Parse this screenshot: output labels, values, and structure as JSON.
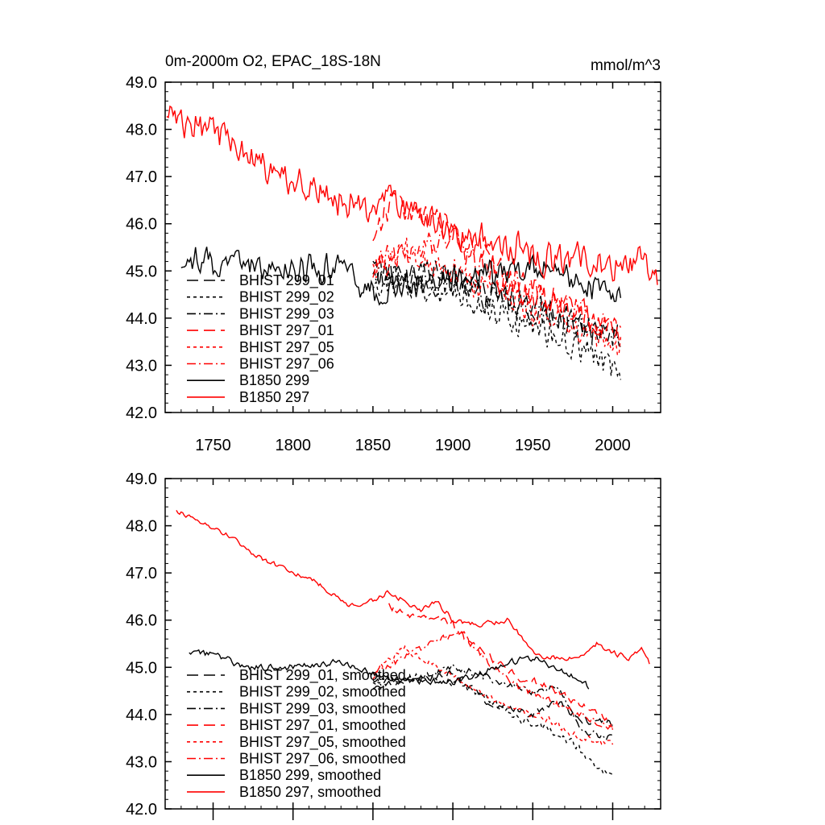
{
  "chart_data": [
    {
      "type": "line",
      "title": "0m-2000m O2, EPAC_18S-18N",
      "units_label": "mmol/m^3",
      "xlim": [
        1720,
        2030
      ],
      "ylim": [
        42.0,
        49.0
      ],
      "x_ticks": [
        1750,
        1800,
        1850,
        1900,
        1950,
        2000
      ],
      "x_tick_labels": [
        "1750",
        "1800",
        "1850",
        "1900",
        "1950",
        "2000"
      ],
      "y_ticks": [
        42,
        43,
        44,
        45,
        46,
        47,
        48,
        49
      ],
      "y_tick_labels": [
        "42.0",
        "43.0",
        "44.0",
        "45.0",
        "46.0",
        "47.0",
        "48.0",
        "49.0"
      ],
      "legend_position": "lower-left",
      "series": [
        {
          "name": "BHIST 299_01",
          "color": "#000000",
          "dash": "long-dash",
          "x_range": [
            1850,
            2005
          ],
          "anchors": [
            [
              1850,
              45.0
            ],
            [
              1880,
              44.9
            ],
            [
              1900,
              44.9
            ],
            [
              1920,
              44.6
            ],
            [
              1950,
              44.3
            ],
            [
              1975,
              43.9
            ],
            [
              2005,
              43.6
            ]
          ],
          "noise": 0.45,
          "seed": 11
        },
        {
          "name": "BHIST 299_02",
          "color": "#000000",
          "dash": "short-dash",
          "x_range": [
            1850,
            2005
          ],
          "anchors": [
            [
              1850,
              44.8
            ],
            [
              1880,
              44.7
            ],
            [
              1910,
              44.4
            ],
            [
              1940,
              44.0
            ],
            [
              1970,
              43.5
            ],
            [
              2005,
              42.9
            ]
          ],
          "noise": 0.5,
          "seed": 12
        },
        {
          "name": "BHIST 299_03",
          "color": "#000000",
          "dash": "dash-dot",
          "x_range": [
            1850,
            2005
          ],
          "anchors": [
            [
              1850,
              45.0
            ],
            [
              1880,
              44.8
            ],
            [
              1910,
              44.6
            ],
            [
              1940,
              44.2
            ],
            [
              1970,
              43.9
            ],
            [
              2005,
              43.6
            ]
          ],
          "noise": 0.45,
          "seed": 13
        },
        {
          "name": "BHIST 297_01",
          "color": "#ff0000",
          "dash": "long-dash",
          "x_range": [
            1850,
            2005
          ],
          "anchors": [
            [
              1850,
              45.6
            ],
            [
              1860,
              46.4
            ],
            [
              1880,
              46.2
            ],
            [
              1900,
              45.8
            ],
            [
              1930,
              45.0
            ],
            [
              1960,
              44.4
            ],
            [
              1985,
              44.1
            ],
            [
              2005,
              43.7
            ]
          ],
          "noise": 0.45,
          "seed": 14
        },
        {
          "name": "BHIST 297_05",
          "color": "#ff0000",
          "dash": "short-dash",
          "x_range": [
            1850,
            2005
          ],
          "anchors": [
            [
              1850,
              45.0
            ],
            [
              1870,
              45.4
            ],
            [
              1890,
              45.2
            ],
            [
              1910,
              44.8
            ],
            [
              1940,
              44.3
            ],
            [
              1970,
              43.9
            ],
            [
              2005,
              43.4
            ]
          ],
          "noise": 0.45,
          "seed": 15
        },
        {
          "name": "BHIST 297_06",
          "color": "#ff0000",
          "dash": "dash-dot",
          "x_range": [
            1850,
            2005
          ],
          "anchors": [
            [
              1850,
              45.1
            ],
            [
              1880,
              45.5
            ],
            [
              1900,
              45.6
            ],
            [
              1925,
              45.0
            ],
            [
              1950,
              44.5
            ],
            [
              1980,
              44.1
            ],
            [
              2005,
              43.8
            ]
          ],
          "noise": 0.45,
          "seed": 16
        },
        {
          "name": "B1850 299",
          "color": "#000000",
          "dash": "solid",
          "x_range": [
            1730,
            2005
          ],
          "anchors": [
            [
              1730,
              45.2
            ],
            [
              1760,
              45.2
            ],
            [
              1800,
              45.0
            ],
            [
              1830,
              45.1
            ],
            [
              1845,
              44.6
            ],
            [
              1880,
              44.7
            ],
            [
              1920,
              44.9
            ],
            [
              1950,
              45.1
            ],
            [
              1980,
              44.8
            ],
            [
              2005,
              44.3
            ]
          ],
          "noise": 0.45,
          "seed": 17
        },
        {
          "name": "B1850 297",
          "color": "#ff0000",
          "dash": "solid",
          "x_range": [
            1721,
            2028
          ],
          "anchors": [
            [
              1721,
              48.3
            ],
            [
              1730,
              48.2
            ],
            [
              1760,
              47.8
            ],
            [
              1790,
              47.1
            ],
            [
              1820,
              46.6
            ],
            [
              1845,
              46.3
            ],
            [
              1860,
              46.5
            ],
            [
              1880,
              46.2
            ],
            [
              1900,
              45.8
            ],
            [
              1920,
              45.7
            ],
            [
              1940,
              45.5
            ],
            [
              1960,
              45.2
            ],
            [
              1980,
              45.3
            ],
            [
              2000,
              45.0
            ],
            [
              2020,
              45.2
            ],
            [
              2028,
              44.7
            ]
          ],
          "noise": 0.5,
          "seed": 18
        }
      ]
    },
    {
      "type": "line",
      "title": "",
      "xlim": [
        1720,
        2030
      ],
      "ylim": [
        42.0,
        49.0
      ],
      "y_ticks": [
        42,
        43,
        44,
        45,
        46,
        47,
        48,
        49
      ],
      "y_tick_labels": [
        "42.0",
        "43.0",
        "44.0",
        "45.0",
        "46.0",
        "47.0",
        "48.0",
        "49.0"
      ],
      "legend_position": "lower-left",
      "series": [
        {
          "name": "BHIST 299_01, smoothed",
          "color": "#000000",
          "dash": "long-dash",
          "x_range": [
            1850,
            2000
          ],
          "anchors": [
            [
              1850,
              44.6
            ],
            [
              1870,
              44.7
            ],
            [
              1890,
              44.8
            ],
            [
              1900,
              44.9
            ],
            [
              1920,
              44.3
            ],
            [
              1940,
              44.1
            ],
            [
              1950,
              44.0
            ],
            [
              1965,
              44.3
            ],
            [
              1980,
              43.9
            ],
            [
              2000,
              43.8
            ]
          ],
          "noise": 0.12,
          "seed": 21
        },
        {
          "name": "BHIST 299_02, smoothed",
          "color": "#000000",
          "dash": "short-dash",
          "x_range": [
            1850,
            2000
          ],
          "anchors": [
            [
              1850,
              44.7
            ],
            [
              1880,
              44.8
            ],
            [
              1900,
              44.7
            ],
            [
              1920,
              44.4
            ],
            [
              1940,
              43.9
            ],
            [
              1960,
              43.7
            ],
            [
              1975,
              43.4
            ],
            [
              1990,
              42.9
            ],
            [
              2000,
              42.7
            ]
          ],
          "noise": 0.12,
          "seed": 22
        },
        {
          "name": "BHIST 299_03, smoothed",
          "color": "#000000",
          "dash": "dash-dot",
          "x_range": [
            1850,
            2000
          ],
          "anchors": [
            [
              1850,
              44.7
            ],
            [
              1880,
              44.8
            ],
            [
              1900,
              45.0
            ],
            [
              1930,
              44.7
            ],
            [
              1950,
              44.5
            ],
            [
              1965,
              44.6
            ],
            [
              1980,
              43.7
            ],
            [
              2000,
              43.5
            ]
          ],
          "noise": 0.12,
          "seed": 23
        },
        {
          "name": "BHIST 297_01, smoothed",
          "color": "#ff0000",
          "dash": "long-dash",
          "x_range": [
            1860,
            2000
          ],
          "anchors": [
            [
              1860,
              46.3
            ],
            [
              1870,
              46.1
            ],
            [
              1880,
              46.1
            ],
            [
              1890,
              46.0
            ],
            [
              1900,
              45.9
            ],
            [
              1920,
              45.3
            ],
            [
              1940,
              44.8
            ],
            [
              1960,
              44.6
            ],
            [
              1980,
              44.2
            ],
            [
              2000,
              43.8
            ]
          ],
          "noise": 0.12,
          "seed": 24
        },
        {
          "name": "BHIST 297_05, smoothed",
          "color": "#ff0000",
          "dash": "short-dash",
          "x_range": [
            1850,
            2000
          ],
          "anchors": [
            [
              1850,
              44.8
            ],
            [
              1860,
              45.2
            ],
            [
              1870,
              45.4
            ],
            [
              1880,
              45.2
            ],
            [
              1900,
              44.8
            ],
            [
              1920,
              44.4
            ],
            [
              1940,
              44.1
            ],
            [
              1960,
              43.9
            ],
            [
              1980,
              43.5
            ],
            [
              2000,
              43.4
            ]
          ],
          "noise": 0.12,
          "seed": 25
        },
        {
          "name": "BHIST 297_06, smoothed",
          "color": "#ff0000",
          "dash": "dash-dot",
          "x_range": [
            1850,
            2000
          ],
          "anchors": [
            [
              1850,
              44.9
            ],
            [
              1870,
              45.2
            ],
            [
              1890,
              45.6
            ],
            [
              1905,
              45.7
            ],
            [
              1920,
              45.2
            ],
            [
              1940,
              44.6
            ],
            [
              1960,
              44.3
            ],
            [
              1980,
              44.0
            ],
            [
              2000,
              43.7
            ]
          ],
          "noise": 0.12,
          "seed": 26
        },
        {
          "name": "B1850 299, smoothed",
          "color": "#000000",
          "dash": "solid",
          "x_range": [
            1735,
            1985
          ],
          "anchors": [
            [
              1735,
              45.3
            ],
            [
              1750,
              45.3
            ],
            [
              1770,
              45.0
            ],
            [
              1800,
              45.0
            ],
            [
              1825,
              45.1
            ],
            [
              1840,
              45.0
            ],
            [
              1855,
              44.8
            ],
            [
              1870,
              44.7
            ],
            [
              1900,
              44.7
            ],
            [
              1920,
              44.9
            ],
            [
              1935,
              45.1
            ],
            [
              1950,
              45.2
            ],
            [
              1970,
              44.9
            ],
            [
              1985,
              44.6
            ]
          ],
          "noise": 0.1,
          "seed": 27
        },
        {
          "name": "B1850 297, smoothed",
          "color": "#ff0000",
          "dash": "solid",
          "x_range": [
            1727,
            2023
          ],
          "anchors": [
            [
              1727,
              48.3
            ],
            [
              1740,
              48.1
            ],
            [
              1760,
              47.8
            ],
            [
              1780,
              47.3
            ],
            [
              1800,
              47.0
            ],
            [
              1815,
              46.8
            ],
            [
              1835,
              46.3
            ],
            [
              1850,
              46.4
            ],
            [
              1860,
              46.6
            ],
            [
              1880,
              46.2
            ],
            [
              1890,
              46.4
            ],
            [
              1900,
              46.0
            ],
            [
              1915,
              45.9
            ],
            [
              1935,
              46.0
            ],
            [
              1950,
              45.3
            ],
            [
              1960,
              45.2
            ],
            [
              1975,
              45.2
            ],
            [
              1985,
              45.3
            ],
            [
              1990,
              45.5
            ],
            [
              2000,
              45.3
            ],
            [
              2010,
              45.2
            ],
            [
              2018,
              45.4
            ],
            [
              2023,
              45.1
            ]
          ],
          "noise": 0.08,
          "seed": 28
        }
      ]
    }
  ]
}
